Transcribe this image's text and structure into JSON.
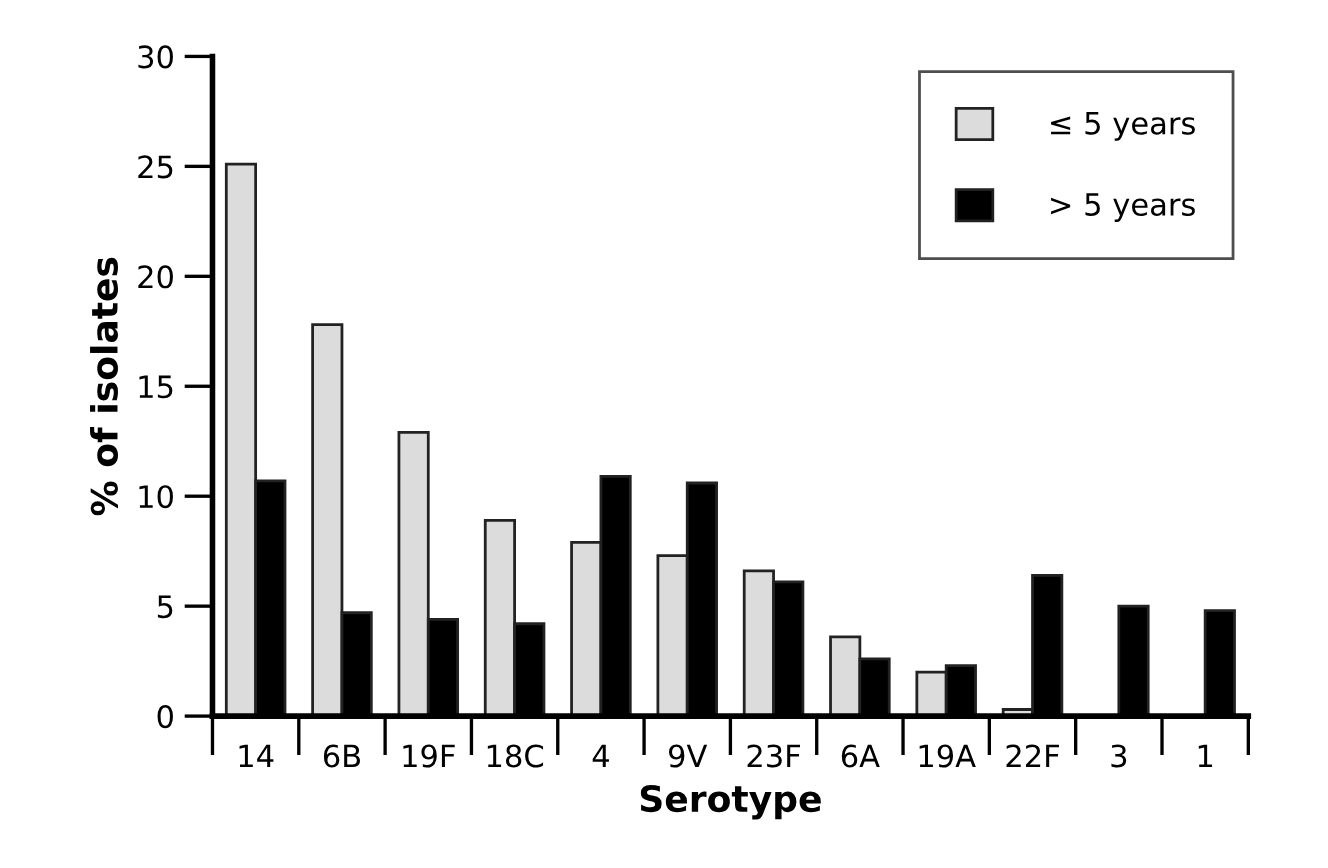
{
  "chart_data": {
    "type": "bar",
    "xlabel": "Serotype",
    "ylabel": "% of isolates",
    "categories": [
      "14",
      "6B",
      "19F",
      "18C",
      "4",
      "9V",
      "23F",
      "6A",
      "19A",
      "22F",
      "3",
      "1"
    ],
    "series": [
      {
        "name": "≤ 5 years",
        "color": "#dcdcdc",
        "values": [
          25.1,
          17.8,
          12.9,
          8.9,
          7.9,
          7.3,
          6.6,
          3.6,
          2.0,
          0.3,
          null,
          null
        ]
      },
      {
        "name": "> 5 years",
        "color": "#000000",
        "values": [
          10.7,
          4.7,
          4.4,
          4.2,
          10.9,
          10.6,
          6.1,
          2.6,
          2.3,
          6.4,
          5.0,
          4.8
        ]
      }
    ],
    "ylim": [
      0,
      30
    ],
    "yticks": [
      0,
      5,
      10,
      15,
      20,
      25,
      30
    ],
    "grid": false,
    "legend": "top right"
  }
}
